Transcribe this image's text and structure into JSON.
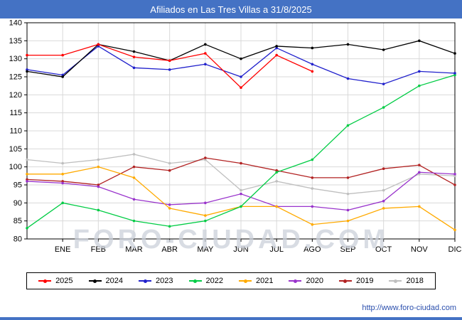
{
  "header": {
    "title": "Afiliados en Las Tres Villas a 31/8/2025"
  },
  "footer": {
    "url": "http://www.foro-ciudad.com"
  },
  "watermark": "FORO-CIUDAD.COM",
  "colors": {
    "title_bar": "#4472c4",
    "title_text": "#ffffff",
    "grid": "#d9d9d9",
    "axis": "#000000",
    "url_text": "#2b4fad",
    "watermark": "#ccd1da"
  },
  "chart_data": {
    "type": "line",
    "title": "Afiliados en Las Tres Villas a 31/8/2025",
    "categories": [
      "",
      "ENE",
      "FEB",
      "MAR",
      "ABR",
      "MAY",
      "JUN",
      "JUL",
      "AGO",
      "SEP",
      "OCT",
      "NOV",
      "DIC"
    ],
    "ylim": [
      80,
      140
    ],
    "ytick_step": 5,
    "grid": true,
    "legend_position": "bottom",
    "series": [
      {
        "name": "2025",
        "color": "#ff0000",
        "values": [
          131,
          131,
          134,
          130.5,
          129.5,
          131.5,
          122,
          131,
          126.5,
          null,
          null,
          null,
          null
        ]
      },
      {
        "name": "2024",
        "color": "#000000",
        "values": [
          126.5,
          125,
          134,
          132,
          129.5,
          134,
          130,
          133.5,
          133,
          134,
          132.5,
          135,
          131.5
        ]
      },
      {
        "name": "2023",
        "color": "#2020cc",
        "values": [
          127,
          125.5,
          133.5,
          127.5,
          127,
          128.5,
          125,
          133,
          128.5,
          124.5,
          123,
          126.5,
          126
        ]
      },
      {
        "name": "2022",
        "color": "#00cc44",
        "values": [
          83,
          90,
          88,
          85,
          83.5,
          85,
          89,
          98.5,
          102,
          111.5,
          116.5,
          122.5,
          125.5
        ]
      },
      {
        "name": "2021",
        "color": "#ffaa00",
        "values": [
          98,
          98,
          100,
          97,
          88.5,
          86.5,
          89,
          89,
          84,
          85,
          88.5,
          89,
          82.5
        ]
      },
      {
        "name": "2020",
        "color": "#9933cc",
        "values": [
          96,
          95.5,
          94.5,
          91,
          89.5,
          90,
          92.5,
          89,
          89,
          88,
          90.5,
          98.5,
          98
        ]
      },
      {
        "name": "2019",
        "color": "#b22222",
        "values": [
          96.5,
          96,
          95,
          100,
          99,
          102.5,
          101,
          99,
          97,
          97,
          99.5,
          100.5,
          95
        ]
      },
      {
        "name": "2018",
        "color": "#bfbfbf",
        "values": [
          102,
          101,
          102,
          103.5,
          101,
          102,
          93.5,
          96,
          94,
          92.5,
          93.5,
          98,
          97.5
        ]
      }
    ]
  }
}
